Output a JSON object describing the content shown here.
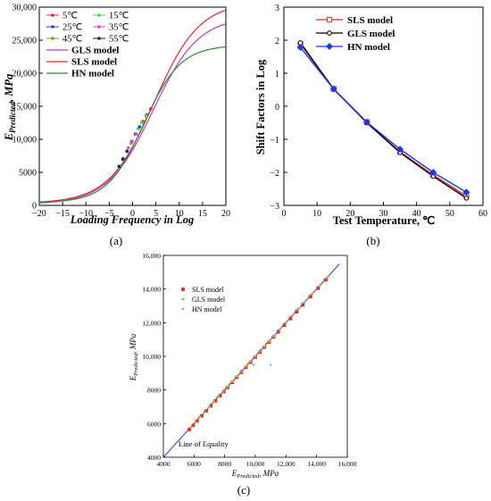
{
  "chart_data": [
    {
      "panel": "(a)",
      "type": "line",
      "xlabel": "Loading Frequency in Log",
      "ylabel_main": "E",
      "ylabel_sub": "Predicted",
      "ylabel_unit": ", MPa",
      "xlim": [
        -20,
        20
      ],
      "ylim": [
        0,
        30000
      ],
      "xticks": [
        "−20",
        "−15",
        "−10",
        "−5",
        "0",
        "5",
        "10",
        "15",
        "20"
      ],
      "yticks": [
        "0",
        "5000",
        "10,000",
        "15,000",
        "20,000",
        "25,000",
        "30,000"
      ],
      "curves": [
        {
          "name": "GLS model",
          "color": "#b43cc8",
          "emin": 180,
          "emax": 28600,
          "x0": 4.4,
          "k": 0.205
        },
        {
          "name": "SLS model",
          "color": "#e0282d",
          "emin": 320,
          "emax": 30800,
          "x0": 4.6,
          "k": 0.205
        },
        {
          "name": "HN model",
          "color": "#2e8b32",
          "emin": 400,
          "emax": 24250,
          "x0": 2.4,
          "k": 0.255
        }
      ],
      "point_series": [
        {
          "name": "5℃",
          "color": "#e0282d",
          "x": [
            2.2,
            3.0,
            3.9
          ],
          "y": [
            12700,
            13700,
            14600
          ]
        },
        {
          "name": "15℃",
          "color": "#4bd84b",
          "x": [
            1.2,
            2.0,
            2.9
          ],
          "y": [
            11600,
            12500,
            13500
          ]
        },
        {
          "name": "25℃",
          "color": "#2840c8",
          "x": [
            -0.2,
            0.6,
            1.5
          ],
          "y": [
            9700,
            10800,
            11900
          ]
        },
        {
          "name": "35℃",
          "color": "#e040e0",
          "x": [
            -0.9,
            -0.1,
            0.8
          ],
          "y": [
            8700,
            9700,
            10800
          ]
        },
        {
          "name": "45℃",
          "color": "#7a9a1a",
          "x": [
            -2.0,
            -1.2,
            -0.3
          ],
          "y": [
            7100,
            8200,
            9400
          ]
        },
        {
          "name": "55℃",
          "color": "#1a1a6a",
          "x": [
            -2.9,
            -2.1,
            -1.2
          ],
          "y": [
            5900,
            7000,
            8200
          ]
        }
      ]
    },
    {
      "panel": "(b)",
      "type": "line",
      "xlabel": "Test Temperature, ℃",
      "ylabel": "Shift Factors in Log",
      "xlim": [
        0,
        60
      ],
      "ylim": [
        -3,
        3
      ],
      "xticks": [
        "0",
        "10",
        "20",
        "30",
        "40",
        "50",
        "60"
      ],
      "yticks": [
        "−3",
        "−2",
        "−1",
        "0",
        "1",
        "2",
        "3"
      ],
      "x": [
        5,
        15,
        25,
        35,
        45,
        55
      ],
      "series": [
        {
          "name": "SLS model",
          "color": "#e0282d",
          "marker": "square-open",
          "values": [
            1.88,
            0.53,
            -0.48,
            -1.38,
            -2.08,
            -2.72
          ]
        },
        {
          "name": "GLS model",
          "color": "#000000",
          "marker": "circle-open",
          "values": [
            1.92,
            0.52,
            -0.5,
            -1.4,
            -2.12,
            -2.78
          ]
        },
        {
          "name": "HN model",
          "color": "#1a3ce0",
          "marker": "diamond-filled",
          "values": [
            1.78,
            0.52,
            -0.48,
            -1.3,
            -2.0,
            -2.6
          ]
        }
      ]
    },
    {
      "panel": "(c)",
      "type": "scatter",
      "xlabel_main": "E",
      "xlabel_sub": "Predicted",
      "xlabel_unit": ", MPa",
      "ylabel_main": "E",
      "ylabel_sub": "Predicted",
      "ylabel_unit": ", MPa",
      "xlim": [
        4000,
        16000
      ],
      "ylim": [
        4000,
        16000
      ],
      "xticks": [
        "4000",
        "6000",
        "8000",
        "10,000",
        "12,000",
        "14,000",
        "16,000"
      ],
      "yticks": [
        "4000",
        "6000",
        "8000",
        "10,000",
        "12,000",
        "14,000",
        "16,000"
      ],
      "equality_line_label": "Line of Equality",
      "series": [
        {
          "name": "SLS model",
          "color": "#e0282d",
          "marker": "square",
          "x": [
            5700,
            5950,
            6200,
            6500,
            6800,
            7100,
            7400,
            7700,
            7950,
            8200,
            8500,
            8800,
            9100,
            9400,
            9700,
            10000,
            10300,
            10600,
            10900,
            11200,
            11500,
            11900,
            12300,
            12700,
            13100,
            13600,
            14100,
            14600
          ],
          "y": [
            5650,
            5900,
            6150,
            6450,
            6750,
            7050,
            7350,
            7650,
            7900,
            8150,
            8450,
            8750,
            9050,
            9350,
            9650,
            9950,
            10250,
            10550,
            10850,
            11150,
            11450,
            11850,
            12250,
            12650,
            13050,
            13550,
            14050,
            14550
          ]
        },
        {
          "name": "GLS model",
          "color": "#e8a020",
          "marker": "dot",
          "x": [
            5800,
            6100,
            6400,
            6700,
            7000,
            7300,
            7600,
            7900,
            8200,
            8500,
            8800,
            9100,
            9400,
            9700,
            10000,
            10300,
            10600,
            10900,
            11200,
            11600,
            12000,
            12400,
            12800,
            13200,
            13700,
            14200,
            14700
          ],
          "y": [
            5800,
            6100,
            6400,
            6700,
            7000,
            7300,
            7600,
            7900,
            8200,
            8500,
            8800,
            9100,
            9400,
            9700,
            10000,
            10300,
            10600,
            10900,
            11200,
            11600,
            12000,
            12400,
            12800,
            13200,
            13700,
            14200,
            14700
          ]
        },
        {
          "name": "HN model",
          "color": "#3aa0e0",
          "marker": "small-dot",
          "x": [
            5900,
            6300,
            6700,
            7100,
            7500,
            7900,
            8300,
            8700,
            9100,
            9500,
            9900,
            10300,
            10700,
            11100,
            11500,
            11900,
            12300,
            12700,
            13100,
            13500,
            14000,
            14500,
            9900,
            11000
          ],
          "y": [
            5950,
            6350,
            6750,
            7150,
            7550,
            7950,
            8350,
            8750,
            9150,
            9550,
            9950,
            10350,
            10750,
            11150,
            11550,
            11950,
            12350,
            12750,
            13150,
            13550,
            14050,
            14550,
            9500,
            9500
          ]
        }
      ]
    }
  ]
}
